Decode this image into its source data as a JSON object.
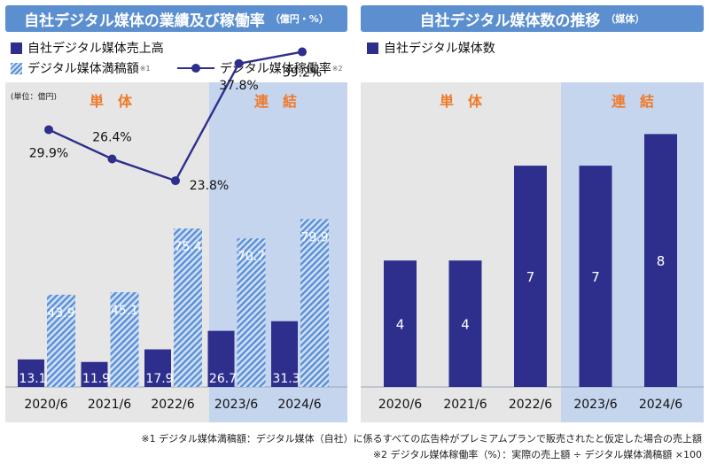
{
  "left_panel": {
    "title": "自社デジタル媒体の業績及び稼働率",
    "title_unit": "（億円・%）",
    "legend": {
      "sales": "自社デジタル媒体売上高",
      "full": "デジタル媒体満稿額",
      "full_note": "※1",
      "rate": "デジタル媒体稼働率",
      "rate_note": "※2"
    },
    "unit_label": "(単位：億円)",
    "region_single": "単　体",
    "region_consolidated": "連　結"
  },
  "right_panel": {
    "title": "自社デジタル媒体数の推移",
    "title_unit": "（媒体）",
    "legend": {
      "count": "自社デジタル媒体数"
    },
    "region_single": "単　体",
    "region_consolidated": "連　結"
  },
  "colors": {
    "navy": "#2e2f8c",
    "hatch_blue": "#5b8fd6",
    "hatch_light": "#cfe0f5",
    "single_bg": "#e6e6e6",
    "consolidated_bg": "#c5d5ee",
    "region_label": "#f07a2a",
    "title_bg": "#5b8fcf"
  },
  "chart_data": [
    {
      "type": "bar",
      "title": "自社デジタル媒体の業績及び稼働率",
      "categories": [
        "2020/6",
        "2021/6",
        "2022/6",
        "2023/6",
        "2024/6"
      ],
      "series": [
        {
          "name": "自社デジタル媒体売上高",
          "values": [
            13.1,
            11.9,
            17.9,
            26.7,
            31.3
          ],
          "labels": [
            "13.1",
            "11.9",
            "17.9",
            "26.7",
            "31.3"
          ]
        },
        {
          "name": "デジタル媒体満稿額",
          "values": [
            43.9,
            45.1,
            75.4,
            70.7,
            79.9
          ],
          "labels": [
            "43.9",
            "45.1",
            "75.4",
            "70.7",
            "79.9"
          ]
        },
        {
          "name": "デジタル媒体稼働率",
          "type": "line",
          "values": [
            29.9,
            26.4,
            23.8,
            37.8,
            39.2
          ],
          "labels": [
            "29.9%",
            "26.4%",
            "23.8%",
            "37.8%",
            "39.2%"
          ]
        }
      ],
      "ylim": [
        0,
        90
      ],
      "y2lim": [
        0,
        100
      ],
      "unit": "億円"
    },
    {
      "type": "bar",
      "title": "自社デジタル媒体数の推移",
      "categories": [
        "2020/6",
        "2021/6",
        "2022/6",
        "2023/6",
        "2024/6"
      ],
      "series": [
        {
          "name": "自社デジタル媒体数",
          "values": [
            4,
            4,
            7,
            7,
            8
          ],
          "labels": [
            "4",
            "4",
            "7",
            "7",
            "8"
          ]
        }
      ],
      "ylim": [
        0,
        9.16
      ],
      "unit": "媒体"
    }
  ],
  "footnotes": {
    "note1": "※1 デジタル媒体満稿額：デジタル媒体（自社）に係るすべての広告枠がプレミアムプランで販売されたと仮定した場合の売上額",
    "note2": "※2 デジタル媒体稼働率（%）：実際の売上額 ÷ デジタル媒体満稿額 ×100"
  }
}
